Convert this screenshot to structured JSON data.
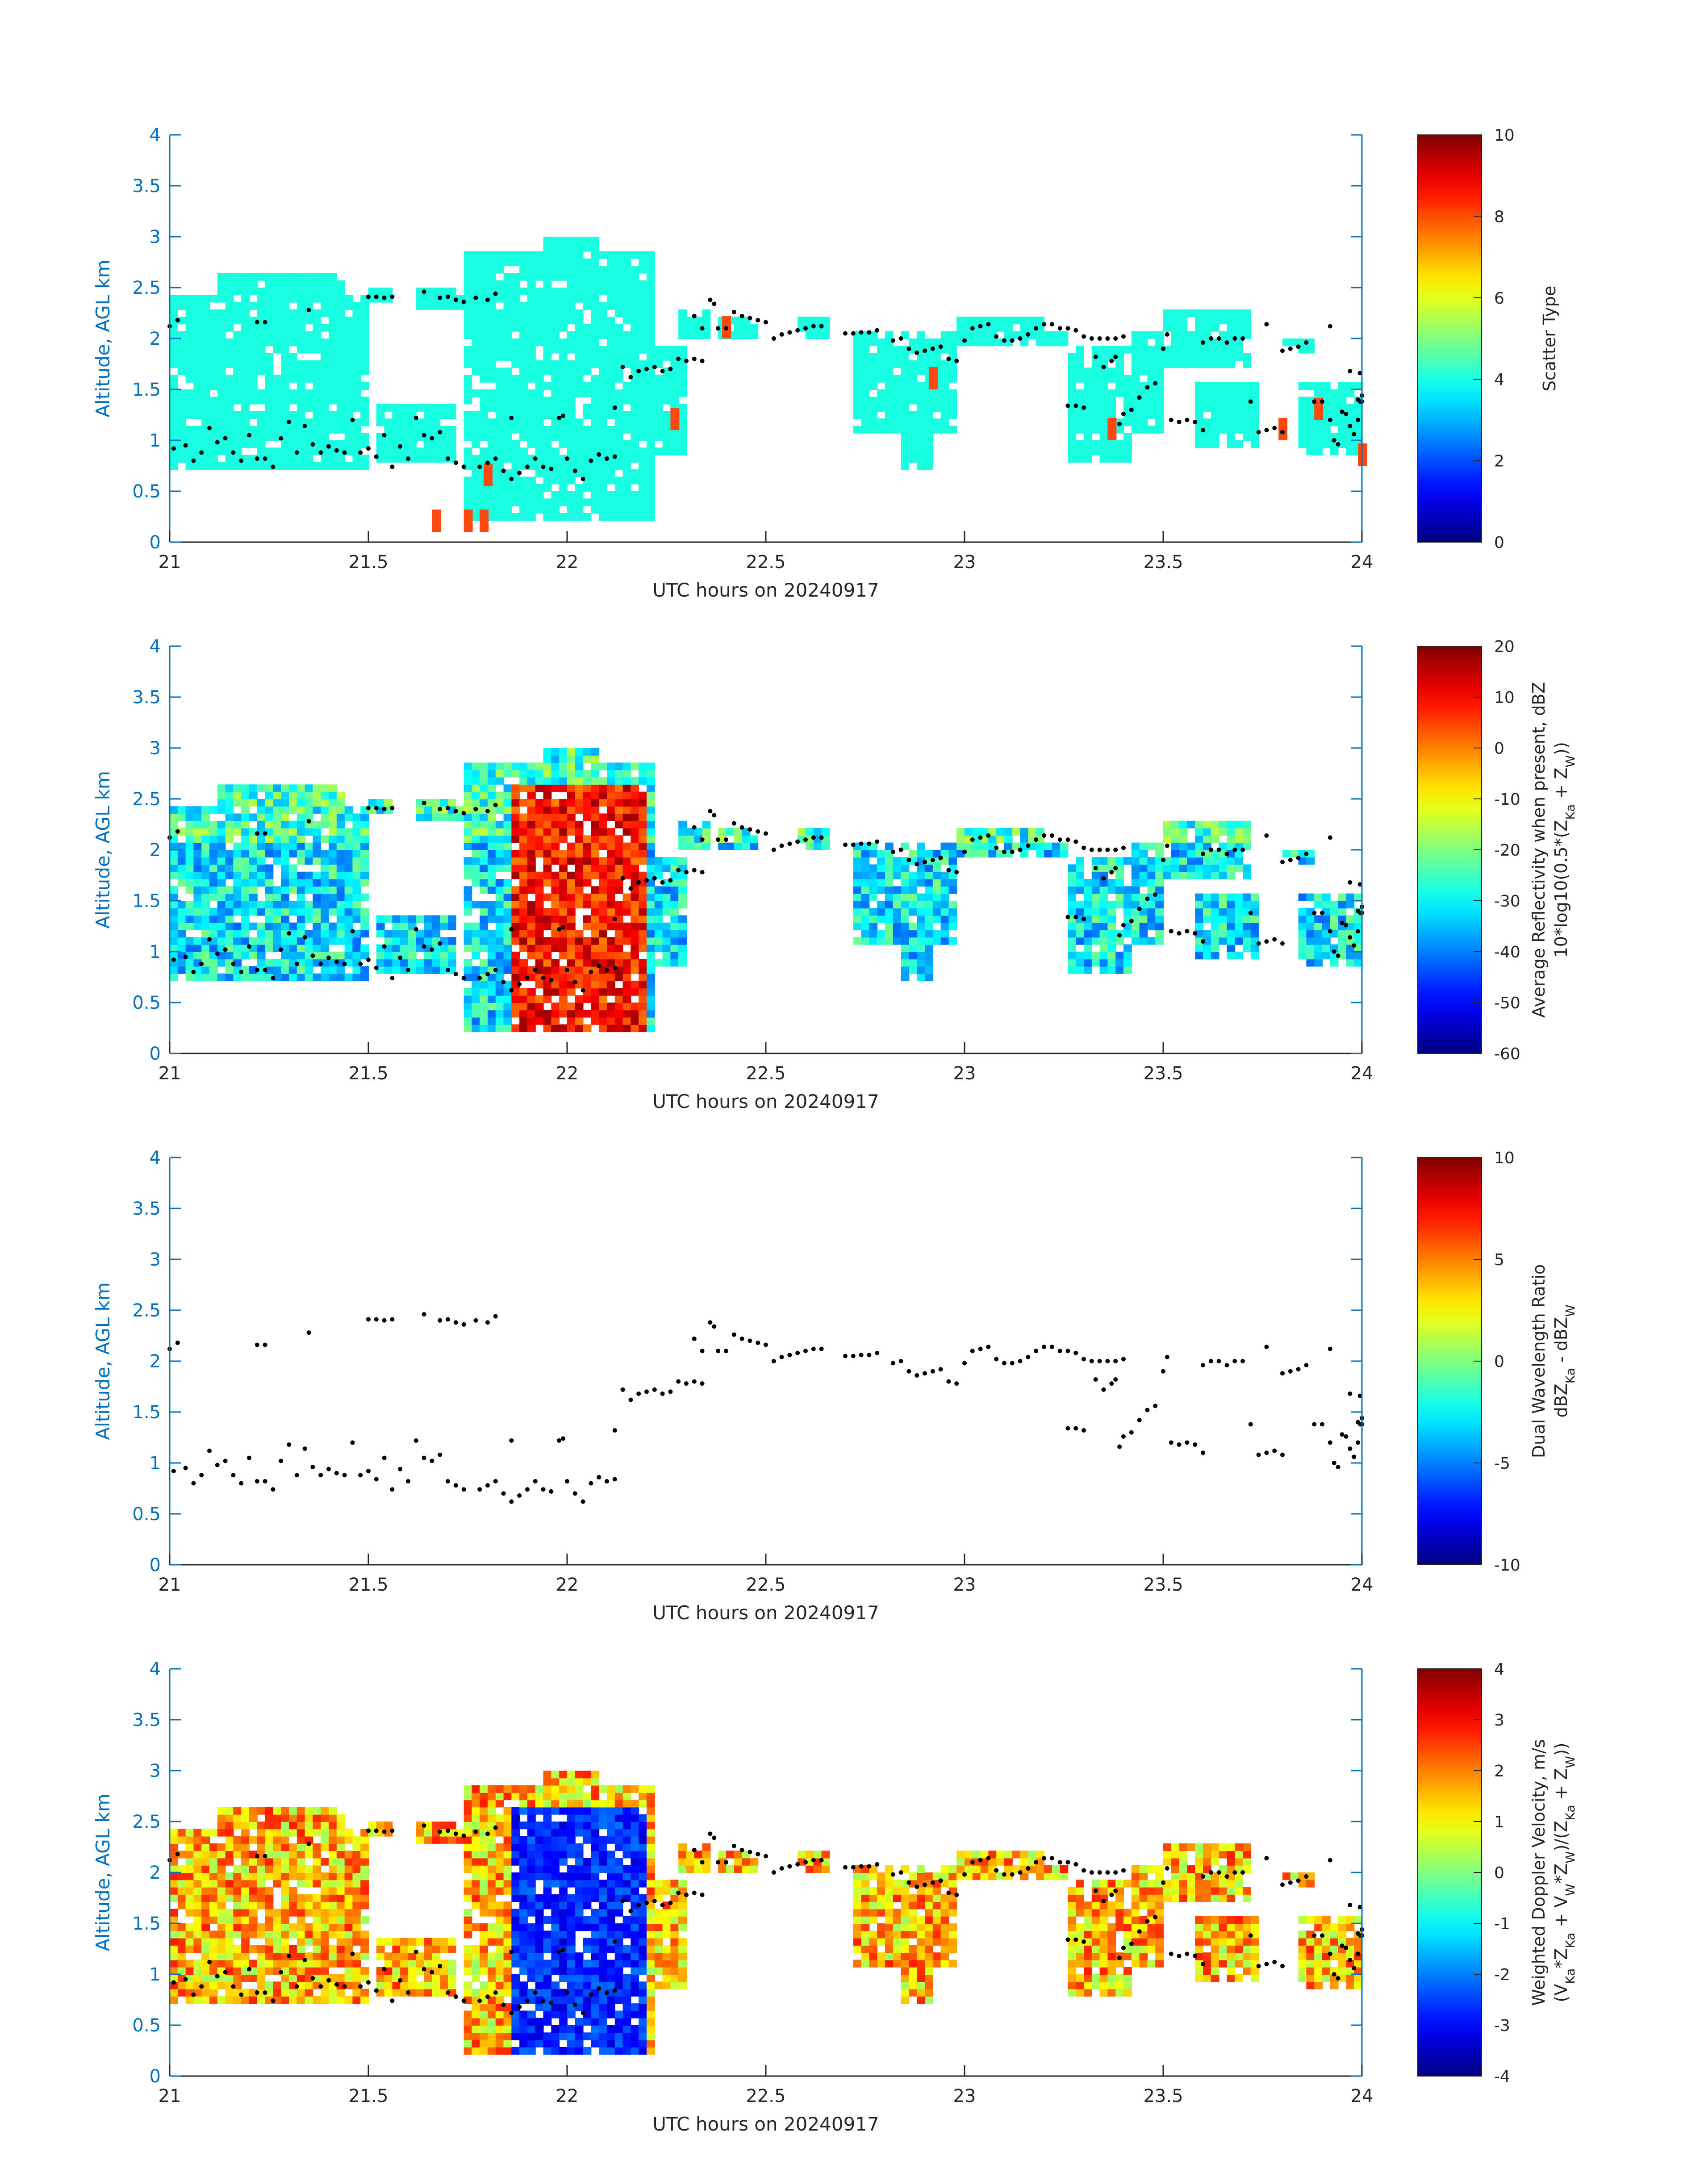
{
  "chart_data": [
    {
      "type": "heatmap",
      "xlabel": "UTC hours on 20240917",
      "ylabel": "Altitude, AGL km",
      "xlim": [
        21,
        24
      ],
      "ylim": [
        0,
        4
      ],
      "xticks": [
        "21",
        "21.5",
        "22",
        "22.5",
        "23",
        "23.5",
        "24"
      ],
      "yticks": [
        "0",
        "0.5",
        "1",
        "1.5",
        "2",
        "2.5",
        "3",
        "3.5",
        "4"
      ],
      "colorbar": {
        "label_lines": [
          "Scatter Type"
        ],
        "range": [
          0,
          10
        ],
        "ticks": [
          "0",
          "2",
          "4",
          "6",
          "8",
          "10"
        ],
        "colormap": "jet"
      },
      "dominant_value": 4,
      "minor_value": 8
    },
    {
      "type": "heatmap",
      "xlabel": "UTC hours on 20240917",
      "ylabel": "Altitude, AGL km",
      "xlim": [
        21,
        24
      ],
      "ylim": [
        0,
        4
      ],
      "xticks": [
        "21",
        "21.5",
        "22",
        "22.5",
        "23",
        "23.5",
        "24"
      ],
      "yticks": [
        "0",
        "0.5",
        "1",
        "1.5",
        "2",
        "2.5",
        "3",
        "3.5",
        "4"
      ],
      "colorbar": {
        "label_lines": [
          "Average Reflectivity when present, dBZ",
          "10*log10(0.5*(Z",
          "Ka",
          " + Z",
          "W",
          "))"
        ],
        "range": [
          -60,
          20
        ],
        "ticks": [
          "-60",
          "-50",
          "-40",
          "-30",
          "-20",
          "-10",
          "0",
          "10",
          "20"
        ],
        "colormap": "jet"
      }
    },
    {
      "type": "heatmap",
      "xlabel": "UTC hours on 20240917",
      "ylabel": "Altitude, AGL km",
      "xlim": [
        21,
        24
      ],
      "ylim": [
        0,
        4
      ],
      "xticks": [
        "21",
        "21.5",
        "22",
        "22.5",
        "23",
        "23.5",
        "24"
      ],
      "yticks": [
        "0",
        "0.5",
        "1",
        "1.5",
        "2",
        "2.5",
        "3",
        "3.5",
        "4"
      ],
      "colorbar": {
        "label_lines": [
          "Dual Wavelength Ratio",
          "dBZ",
          "Ka",
          " - dBZ",
          "W"
        ],
        "range": [
          -10,
          10
        ],
        "ticks": [
          "-10",
          "-5",
          "0",
          "5",
          "10"
        ],
        "colormap": "jet"
      }
    },
    {
      "type": "heatmap",
      "xlabel": "UTC hours on 20240917",
      "ylabel": "Altitude, AGL km",
      "xlim": [
        21,
        24
      ],
      "ylim": [
        0,
        4
      ],
      "xticks": [
        "21",
        "21.5",
        "22",
        "22.5",
        "23",
        "23.5",
        "24"
      ],
      "yticks": [
        "0",
        "0.5",
        "1",
        "1.5",
        "2",
        "2.5",
        "3",
        "3.5",
        "4"
      ],
      "colorbar": {
        "label_lines": [
          "Weighted Doppler Velocity, m/s",
          "(V",
          "Ka",
          "*Z",
          "Ka",
          " + V",
          "W",
          "*Z",
          "W",
          ")/(Z",
          "Ka",
          " + Z",
          "W",
          "))"
        ],
        "range": [
          -4,
          4
        ],
        "ticks": [
          "-4",
          "-3",
          "-2",
          "-1",
          "0",
          "1",
          "2",
          "3",
          "4"
        ],
        "colormap": "jet"
      }
    }
  ],
  "cloud_base_points": [
    [
      21.0,
      2.12
    ],
    [
      21.02,
      2.18
    ],
    [
      21.01,
      0.92
    ],
    [
      21.04,
      0.95
    ],
    [
      21.06,
      0.8
    ],
    [
      21.08,
      0.88
    ],
    [
      21.1,
      1.12
    ],
    [
      21.12,
      0.98
    ],
    [
      21.14,
      1.02
    ],
    [
      21.16,
      0.88
    ],
    [
      21.18,
      0.8
    ],
    [
      21.2,
      1.05
    ],
    [
      21.22,
      0.82
    ],
    [
      21.24,
      0.82
    ],
    [
      21.26,
      0.74
    ],
    [
      21.22,
      2.16
    ],
    [
      21.24,
      2.16
    ],
    [
      21.28,
      1.02
    ],
    [
      21.3,
      1.18
    ],
    [
      21.32,
      0.88
    ],
    [
      21.34,
      1.14
    ],
    [
      21.36,
      0.96
    ],
    [
      21.38,
      0.88
    ],
    [
      21.4,
      0.94
    ],
    [
      21.42,
      0.9
    ],
    [
      21.44,
      0.88
    ],
    [
      21.35,
      2.28
    ],
    [
      21.46,
      1.2
    ],
    [
      21.48,
      0.88
    ],
    [
      21.5,
      0.92
    ],
    [
      21.52,
      0.84
    ],
    [
      21.54,
      1.05
    ],
    [
      21.56,
      0.74
    ],
    [
      21.58,
      0.94
    ],
    [
      21.5,
      2.41
    ],
    [
      21.52,
      2.41
    ],
    [
      21.54,
      2.4
    ],
    [
      21.56,
      2.41
    ],
    [
      21.6,
      0.82
    ],
    [
      21.62,
      1.22
    ],
    [
      21.64,
      1.05
    ],
    [
      21.66,
      1.02
    ],
    [
      21.68,
      1.08
    ],
    [
      21.7,
      0.82
    ],
    [
      21.72,
      0.78
    ],
    [
      21.74,
      0.74
    ],
    [
      21.64,
      2.46
    ],
    [
      21.68,
      2.4
    ],
    [
      21.7,
      2.41
    ],
    [
      21.72,
      2.38
    ],
    [
      21.74,
      2.36
    ],
    [
      21.77,
      2.4
    ],
    [
      21.8,
      2.38
    ],
    [
      21.82,
      2.44
    ],
    [
      21.78,
      0.74
    ],
    [
      21.8,
      0.78
    ],
    [
      21.82,
      0.82
    ],
    [
      21.84,
      0.7
    ],
    [
      21.86,
      0.62
    ],
    [
      21.88,
      0.68
    ],
    [
      21.9,
      0.74
    ],
    [
      21.86,
      1.22
    ],
    [
      21.92,
      0.82
    ],
    [
      21.94,
      0.74
    ],
    [
      21.96,
      0.72
    ],
    [
      21.98,
      1.22
    ],
    [
      21.99,
      1.24
    ],
    [
      22.0,
      0.82
    ],
    [
      22.02,
      0.7
    ],
    [
      22.04,
      0.62
    ],
    [
      22.06,
      0.8
    ],
    [
      22.08,
      0.86
    ],
    [
      22.1,
      0.82
    ],
    [
      22.12,
      0.84
    ],
    [
      22.12,
      1.32
    ],
    [
      22.14,
      1.72
    ],
    [
      22.16,
      1.62
    ],
    [
      22.18,
      1.68
    ],
    [
      22.2,
      1.7
    ],
    [
      22.22,
      1.72
    ],
    [
      22.24,
      1.68
    ],
    [
      22.26,
      1.7
    ],
    [
      22.28,
      1.8
    ],
    [
      22.3,
      1.78
    ],
    [
      22.32,
      1.8
    ],
    [
      22.34,
      1.78
    ],
    [
      22.32,
      2.22
    ],
    [
      22.34,
      2.1
    ],
    [
      22.36,
      2.38
    ],
    [
      22.37,
      2.34
    ],
    [
      22.38,
      2.1
    ],
    [
      22.4,
      2.1
    ],
    [
      22.42,
      2.26
    ],
    [
      22.44,
      2.22
    ],
    [
      22.46,
      2.2
    ],
    [
      22.48,
      2.18
    ],
    [
      22.5,
      2.16
    ],
    [
      22.52,
      2.0
    ],
    [
      22.54,
      2.04
    ],
    [
      22.56,
      2.06
    ],
    [
      22.58,
      2.08
    ],
    [
      22.6,
      2.1
    ],
    [
      22.62,
      2.12
    ],
    [
      22.64,
      2.12
    ],
    [
      22.7,
      2.05
    ],
    [
      22.72,
      2.05
    ],
    [
      22.74,
      2.06
    ],
    [
      22.76,
      2.06
    ],
    [
      22.78,
      2.08
    ],
    [
      22.82,
      1.98
    ],
    [
      22.84,
      2.0
    ],
    [
      22.86,
      1.9
    ],
    [
      22.88,
      1.86
    ],
    [
      22.9,
      1.88
    ],
    [
      22.92,
      1.9
    ],
    [
      22.94,
      1.92
    ],
    [
      22.96,
      1.8
    ],
    [
      22.98,
      1.78
    ],
    [
      23.0,
      1.98
    ],
    [
      23.02,
      2.1
    ],
    [
      23.04,
      2.12
    ],
    [
      23.06,
      2.14
    ],
    [
      23.08,
      2.02
    ],
    [
      23.1,
      1.98
    ],
    [
      23.12,
      1.98
    ],
    [
      23.14,
      2.0
    ],
    [
      23.16,
      2.04
    ],
    [
      23.18,
      2.1
    ],
    [
      23.2,
      2.14
    ],
    [
      23.22,
      2.14
    ],
    [
      23.24,
      2.1
    ],
    [
      23.26,
      2.1
    ],
    [
      23.28,
      2.08
    ],
    [
      23.3,
      2.02
    ],
    [
      23.32,
      2.0
    ],
    [
      23.34,
      2.0
    ],
    [
      23.36,
      2.0
    ],
    [
      23.38,
      2.0
    ],
    [
      23.4,
      2.02
    ],
    [
      23.26,
      1.34
    ],
    [
      23.28,
      1.34
    ],
    [
      23.3,
      1.32
    ],
    [
      23.33,
      1.82
    ],
    [
      23.35,
      1.72
    ],
    [
      23.37,
      1.78
    ],
    [
      23.38,
      1.82
    ],
    [
      23.39,
      1.16
    ],
    [
      23.4,
      1.26
    ],
    [
      23.42,
      1.3
    ],
    [
      23.44,
      1.42
    ],
    [
      23.46,
      1.52
    ],
    [
      23.48,
      1.56
    ],
    [
      23.5,
      1.9
    ],
    [
      23.51,
      2.04
    ],
    [
      23.52,
      1.2
    ],
    [
      23.54,
      1.18
    ],
    [
      23.56,
      1.2
    ],
    [
      23.58,
      1.18
    ],
    [
      23.6,
      1.1
    ],
    [
      23.6,
      1.96
    ],
    [
      23.62,
      2.0
    ],
    [
      23.64,
      2.0
    ],
    [
      23.66,
      1.96
    ],
    [
      23.68,
      2.0
    ],
    [
      23.7,
      2.0
    ],
    [
      23.72,
      1.38
    ],
    [
      23.74,
      1.08
    ],
    [
      23.76,
      1.1
    ],
    [
      23.78,
      1.12
    ],
    [
      23.8,
      1.08
    ],
    [
      23.76,
      2.14
    ],
    [
      23.8,
      1.88
    ],
    [
      23.82,
      1.9
    ],
    [
      23.84,
      1.92
    ],
    [
      23.86,
      1.96
    ],
    [
      23.88,
      1.38
    ],
    [
      23.9,
      1.38
    ],
    [
      23.92,
      1.2
    ],
    [
      23.93,
      1.0
    ],
    [
      23.94,
      0.96
    ],
    [
      23.92,
      2.12
    ],
    [
      23.95,
      1.28
    ],
    [
      23.96,
      1.26
    ],
    [
      23.97,
      1.14
    ],
    [
      23.98,
      1.06
    ],
    [
      23.99,
      1.2
    ],
    [
      24.0,
      1.44
    ],
    [
      23.97,
      1.68
    ],
    [
      23.99,
      1.4
    ],
    [
      23.995,
      1.66
    ],
    [
      23.996,
      1.38
    ],
    [
      24.0,
      1.38
    ]
  ]
}
